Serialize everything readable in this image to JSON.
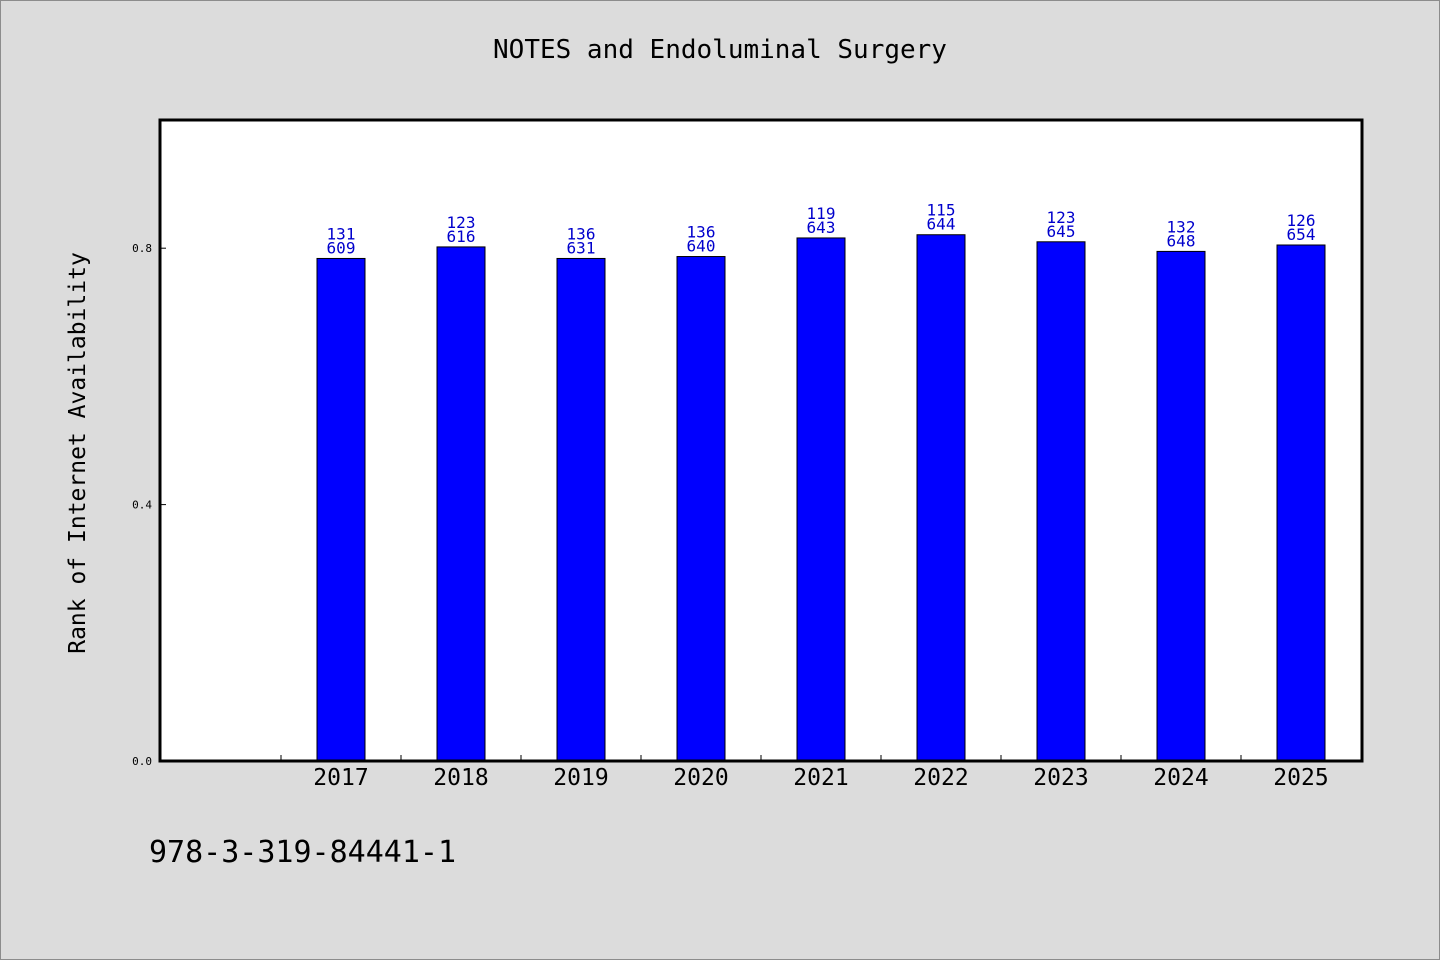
{
  "title": "NOTES and Endoluminal Surgery",
  "footnote": "978-3-319-84441-1",
  "colors": {
    "bar": "#0000ff",
    "label": "#0000cc",
    "background": "#dcdcdc",
    "plot": "#ffffff"
  },
  "chart_data": {
    "type": "bar",
    "title": "NOTES and Endoluminal Surgery",
    "xlabel": "",
    "ylabel": "Rank of Internet Availability",
    "ylim": [
      0,
      1.0
    ],
    "yticks": [
      0.0,
      0.4,
      0.8
    ],
    "ytick_labels": [
      "0.0",
      "0.4",
      "0.8"
    ],
    "grid": false,
    "legend": "none",
    "x_empty_slots_before": 1,
    "categories": [
      "2017",
      "2018",
      "2019",
      "2020",
      "2021",
      "2022",
      "2023",
      "2024",
      "2025"
    ],
    "values": [
      0.784,
      0.802,
      0.784,
      0.787,
      0.816,
      0.821,
      0.81,
      0.795,
      0.805
    ],
    "label_top": [
      "131",
      "123",
      "136",
      "136",
      "119",
      "115",
      "123",
      "132",
      "126"
    ],
    "label_bottom": [
      "609",
      "616",
      "631",
      "640",
      "643",
      "644",
      "645",
      "648",
      "654"
    ]
  }
}
